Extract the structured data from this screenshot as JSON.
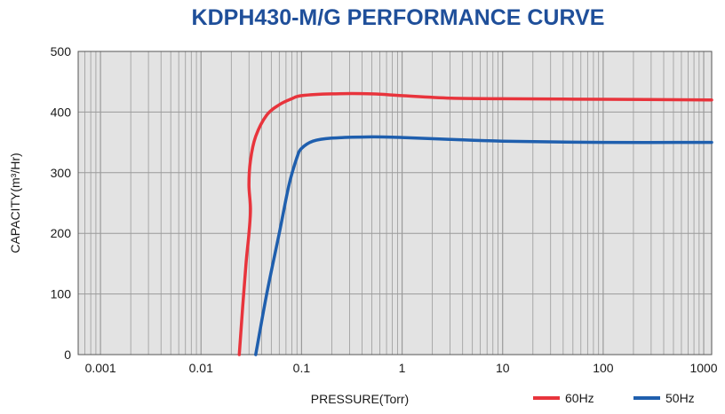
{
  "chart_data": {
    "type": "line",
    "title": "KDPH430-M/G  PERFORMANCE CURVE",
    "xlabel": "PRESSURE(Torr)",
    "ylabel": "CAPACITY(m³/Hr)",
    "x_scale": "log",
    "xlim": [
      0.0006,
      1200
    ],
    "ylim": [
      0,
      500
    ],
    "grid": true,
    "legend_position": "bottom-right",
    "x_ticks": [
      0.001,
      0.01,
      0.1,
      1,
      10,
      100,
      1000
    ],
    "x_tick_labels": [
      "0.001",
      "0.01",
      "0.1",
      "1",
      "10",
      "100",
      "1000"
    ],
    "y_ticks": [
      0,
      100,
      200,
      300,
      400,
      500
    ],
    "y_tick_labels": [
      "0",
      "100",
      "200",
      "300",
      "400",
      "500"
    ],
    "colors": {
      "plot_background": "#e3e3e3",
      "grid": "#9a9a9a",
      "title": "#1f4f9a"
    },
    "series": [
      {
        "name": "60Hz",
        "color": "#e8343c",
        "x": [
          0.024,
          0.026,
          0.028,
          0.03,
          0.031,
          0.03,
          0.031,
          0.035,
          0.045,
          0.06,
          0.08,
          0.1,
          0.2,
          0.5,
          1,
          3,
          10,
          100,
          1200
        ],
        "y": [
          0,
          80,
          150,
          200,
          240,
          280,
          320,
          360,
          395,
          412,
          422,
          427,
          430,
          430,
          427,
          423,
          422,
          421,
          420
        ]
      },
      {
        "name": "50Hz",
        "color": "#1f5fae",
        "x": [
          0.035,
          0.045,
          0.06,
          0.075,
          0.09,
          0.1,
          0.13,
          0.2,
          0.5,
          1,
          3,
          10,
          100,
          1200
        ],
        "y": [
          0,
          100,
          200,
          280,
          325,
          340,
          352,
          357,
          359,
          358,
          355,
          352,
          350,
          350
        ]
      }
    ]
  }
}
